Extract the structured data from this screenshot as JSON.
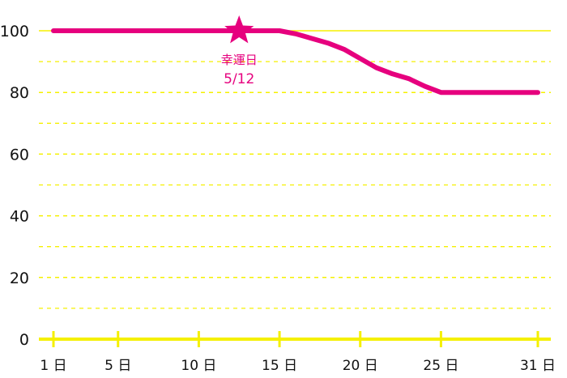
{
  "chart_data": {
    "type": "line",
    "x_tick_labels": [
      "1 日",
      "5 日",
      "10 日",
      "15 日",
      "20 日",
      "25 日",
      "31 日"
    ],
    "x_tick_days": [
      1,
      5,
      10,
      15,
      20,
      25,
      31
    ],
    "y_ticks": [
      0,
      20,
      40,
      60,
      80,
      100
    ],
    "ylim": [
      0,
      100
    ],
    "xlim": [
      1,
      31
    ],
    "grid": true,
    "series": [
      {
        "x": [
          1,
          5,
          10,
          15,
          16,
          17,
          18,
          19,
          20,
          21,
          22,
          23,
          24,
          25,
          26,
          27,
          28,
          29,
          30,
          31
        ],
        "values": [
          100,
          100,
          100,
          100,
          99,
          97.5,
          96,
          94,
          91,
          88,
          86,
          84.5,
          82,
          80,
          80,
          80,
          80,
          80,
          80,
          80
        ]
      }
    ],
    "annotation": {
      "marker": "star-icon",
      "day": 12.5,
      "value": 100,
      "label": "幸運日",
      "date_label": "5/12"
    },
    "colors": {
      "line": "#e6007e",
      "grid": "#f5f000",
      "axis": "#f5f000",
      "text": "#111111"
    }
  }
}
